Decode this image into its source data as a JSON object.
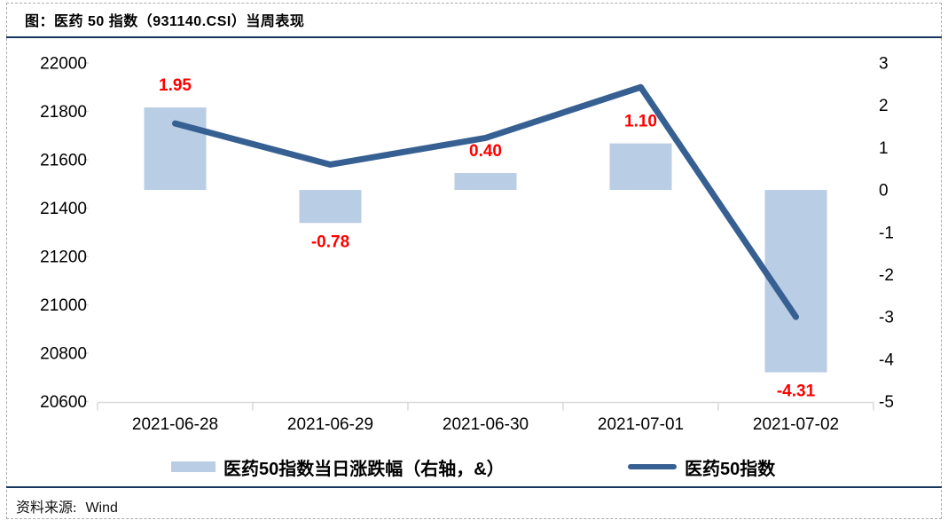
{
  "title": "图：医药 50 指数（931140.CSI）当周表现",
  "legend": {
    "bar_label": "医药50指数当日涨跌幅（右轴，&）",
    "line_label": "医药50指数"
  },
  "source": {
    "label": "资料来源:",
    "value": "Wind"
  },
  "colors": {
    "bar_fill": "#B9CDE5",
    "line": "#376092",
    "value_label": "#FF0000",
    "rule": "#17375E",
    "axis": "#D9D9D9",
    "text": "#000000"
  },
  "chart_data": {
    "type": "bar+line combo",
    "title": "医药 50 指数（931140.CSI）当周表现",
    "categories": [
      "2021-06-28",
      "2021-06-29",
      "2021-06-30",
      "2021-07-01",
      "2021-07-02"
    ],
    "series": [
      {
        "name": "医药50指数当日涨跌幅（右轴，&）",
        "type": "bar",
        "axis": "right",
        "values": [
          1.95,
          -0.78,
          0.4,
          1.1,
          -4.31
        ],
        "data_labels": [
          "1.95",
          "-0.78",
          "0.40",
          "1.10",
          "-4.31"
        ]
      },
      {
        "name": "医药50指数",
        "type": "line",
        "axis": "left",
        "values": [
          21750,
          21580,
          21690,
          21900,
          20950
        ]
      }
    ],
    "left_axis": {
      "min": 20600,
      "max": 22000,
      "step": 200
    },
    "right_axis": {
      "min": -5,
      "max": 3,
      "step": 1
    },
    "grid": false,
    "legend_position": "bottom"
  }
}
